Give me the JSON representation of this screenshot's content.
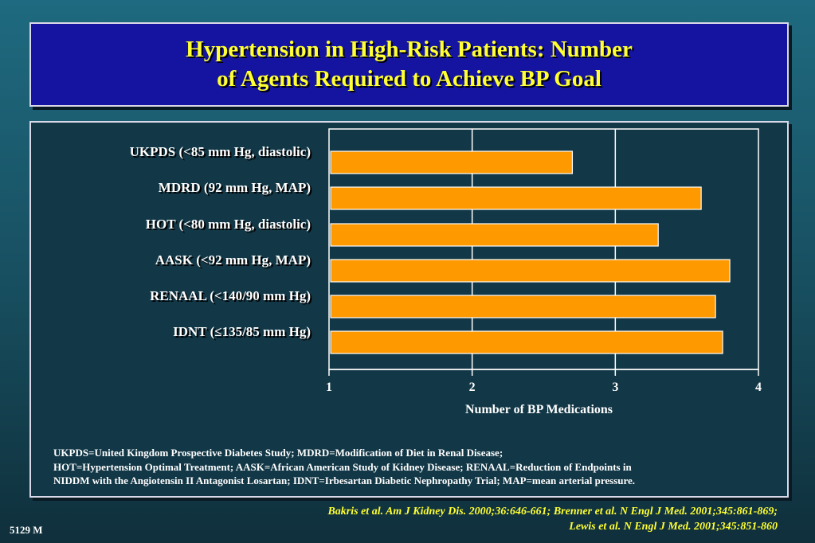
{
  "title": {
    "line1": "Hypertension in High-Risk Patients: Number",
    "line2": "of Agents Required to Achieve BP Goal"
  },
  "chart_data": {
    "type": "bar",
    "orientation": "horizontal",
    "categories": [
      "UKPDS (<85 mm Hg, diastolic)",
      "MDRD (92 mm Hg, MAP)",
      "HOT (<80 mm Hg, diastolic)",
      "AASK (<92 mm Hg, MAP)",
      "RENAAL (<140/90 mm Hg)",
      "IDNT (≤135/85 mm Hg)"
    ],
    "values": [
      2.7,
      3.6,
      3.3,
      3.8,
      3.7,
      3.75
    ],
    "xlabel": "Number of BP Medications",
    "xlim": [
      1,
      4
    ],
    "xticks": [
      1,
      2,
      3,
      4
    ],
    "grid": true,
    "bar_color": "#ff9900"
  },
  "footnote": {
    "line1": "UKPDS=United Kingdom Prospective Diabetes Study; MDRD=Modification of Diet in Renal Disease;",
    "line2": "HOT=Hypertension Optimal Treatment; AASK=African American Study of Kidney Disease; RENAAL=Reduction of Endpoints in",
    "line3": "NIDDM with the Angiotensin II Antagonist Losartan; IDNT=Irbesartan Diabetic Nephropathy Trial; MAP=mean arterial pressure."
  },
  "citation": {
    "line1": "Bakris et al. Am J Kidney Dis. 2000;36:646-661; Brenner et al. N Engl J Med. 2001;345:861-869;",
    "line2": "Lewis et al. N Engl J Med. 2001;345:851-860"
  },
  "slide_id": "5129 M"
}
